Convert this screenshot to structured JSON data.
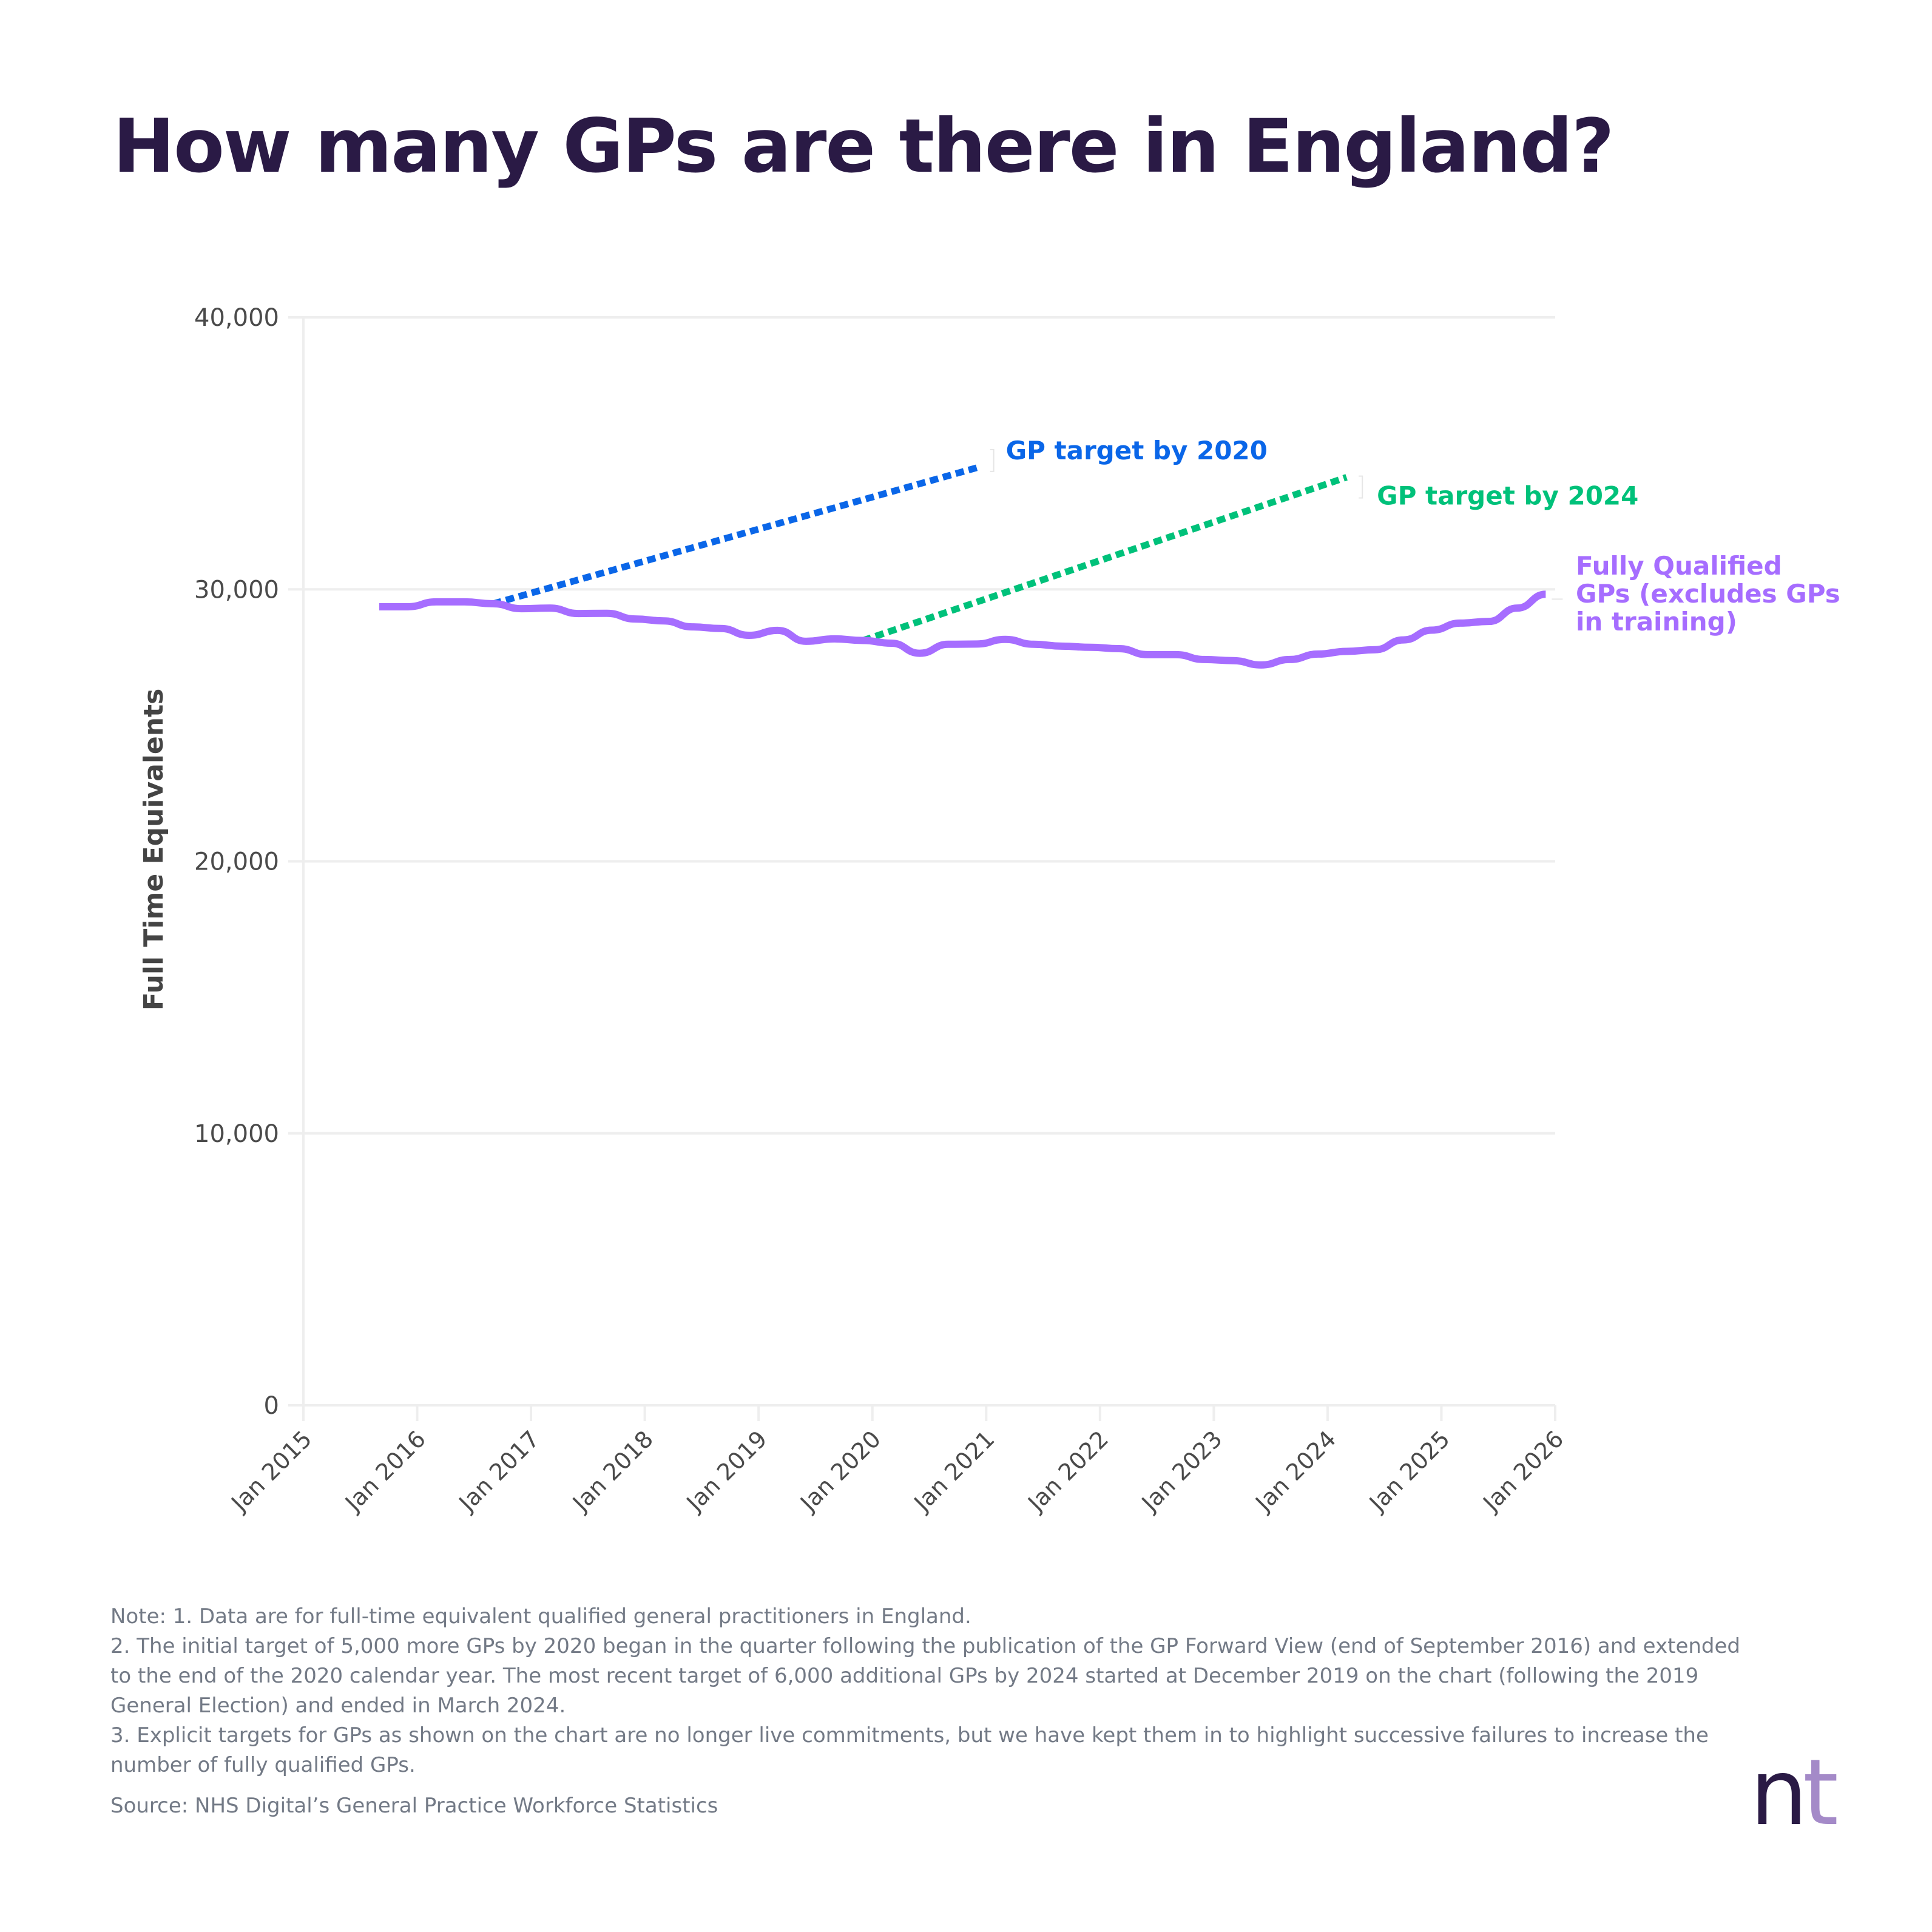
{
  "title": "How many GPs are there in England?",
  "colors": {
    "title": "#2A1A45",
    "fully_qualified": "#A66DFF",
    "target_2020": "#0A66E8",
    "target_2024": "#00C17A",
    "grid": "#EEEEEE",
    "notes": "#737A86"
  },
  "chart_data": {
    "type": "line",
    "title": "How many GPs are there in England?",
    "xlabel": "",
    "ylabel": "Full Time Equivalents",
    "ylim": [
      0,
      40000
    ],
    "xlim": [
      "Jan 2015",
      "Jan 2026"
    ],
    "grid": true,
    "yticks": [
      0,
      10000,
      20000,
      30000,
      40000
    ],
    "ytick_labels": [
      "0",
      "10,000",
      "20,000",
      "30,000",
      "40,000"
    ],
    "xtick_labels": [
      "Jan 2015",
      "Jan 2016",
      "Jan 2017",
      "Jan 2018",
      "Jan 2019",
      "Jan 2020",
      "Jan 2021",
      "Jan 2022",
      "Jan 2023",
      "Jan 2024",
      "Jan 2025",
      "Jan 2026"
    ],
    "series": [
      {
        "name": "Fully Qualified GPs (excludes GPs in training)",
        "label_lines": [
          "Fully Qualified",
          "GPs (excludes GPs",
          "in training)"
        ],
        "style": "solid",
        "color": "#A66DFF",
        "x": [
          "Sep 2015",
          "Dec 2015",
          "Mar 2016",
          "Jun 2016",
          "Sep 2016",
          "Dec 2016",
          "Mar 2017",
          "Jun 2017",
          "Sep 2017",
          "Dec 2017",
          "Mar 2018",
          "Jun 2018",
          "Sep 2018",
          "Dec 2018",
          "Mar 2019",
          "Jun 2019",
          "Sep 2019",
          "Dec 2019",
          "Mar 2020",
          "Jun 2020",
          "Sep 2020",
          "Dec 2020",
          "Mar 2021",
          "Jun 2021",
          "Sep 2021",
          "Dec 2021",
          "Mar 2022",
          "Jun 2022",
          "Sep 2022",
          "Dec 2022",
          "Mar 2023",
          "Jun 2023",
          "Sep 2023",
          "Dec 2023",
          "Mar 2024",
          "Jun 2024",
          "Sep 2024",
          "Dec 2024",
          "Mar 2025",
          "Jun 2025",
          "Sep 2025",
          "Dec 2025"
        ],
        "values": [
          29360,
          29360,
          29540,
          29540,
          29470,
          29290,
          29310,
          29110,
          29120,
          28910,
          28840,
          28620,
          28560,
          28310,
          28490,
          28090,
          28180,
          28120,
          28020,
          27650,
          27980,
          27990,
          28160,
          27980,
          27910,
          27870,
          27820,
          27600,
          27600,
          27420,
          27380,
          27220,
          27420,
          27620,
          27720,
          27780,
          28140,
          28500,
          28760,
          28820,
          29310,
          29820
        ]
      },
      {
        "name": "GP target by 2020",
        "style": "dotted",
        "color": "#0A66E8",
        "x": [
          "Sep 2016",
          "Dec 2020"
        ],
        "values": [
          29470,
          34470
        ]
      },
      {
        "name": "GP target by 2024",
        "style": "dotted",
        "color": "#00C17A",
        "x": [
          "Dec 2019",
          "Mar 2024"
        ],
        "values": [
          28120,
          34120
        ]
      }
    ]
  },
  "notes": [
    "Note: 1. Data are for full-time equivalent qualified general practitioners in England.",
    "2. The initial target of 5,000 more GPs by 2020 began in the quarter following the publication of the GP Forward View (end of September 2016) and extended to the end of the 2020 calendar year. The most recent target of 6,000 additional GPs by 2024 started at December 2019 on the chart (following the 2019 General Election) and ended in March 2024.",
    "3. Explicit targets for GPs as shown on the chart are no longer live commitments, but we have kept them in to highlight successive failures to increase the number of fully qualified GPs."
  ],
  "source": "Source: NHS Digital’s General Practice Workforce Statistics",
  "logo": {
    "n": "n",
    "t": "t"
  }
}
